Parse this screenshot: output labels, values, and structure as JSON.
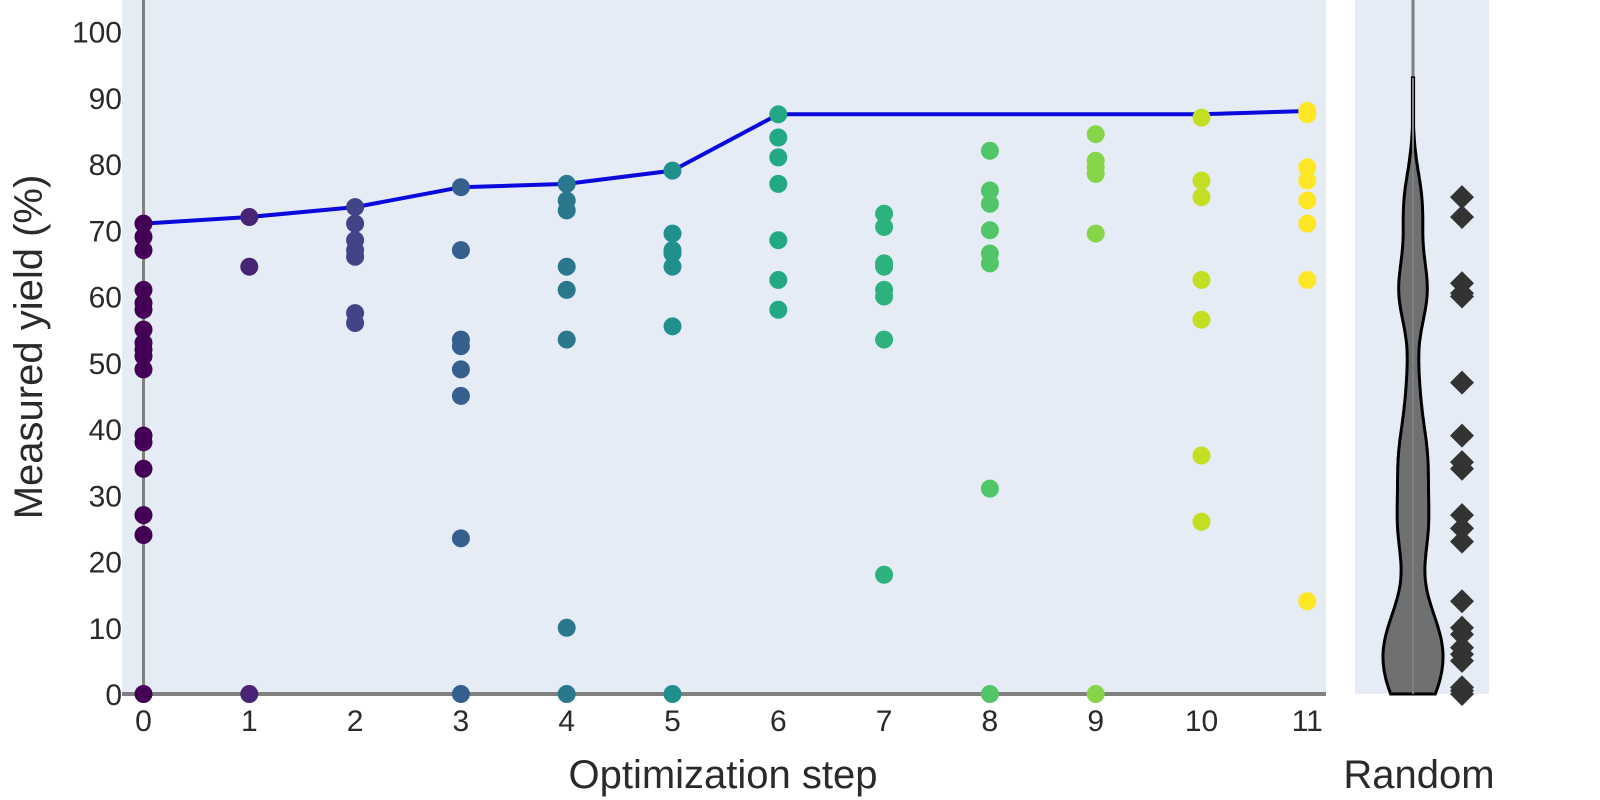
{
  "chart_data": [
    {
      "type": "scatter",
      "xlabel": "Optimization step",
      "ylabel": "Measured yield (%)",
      "xlim": [
        -0.2,
        11.2
      ],
      "ylim": [
        0,
        105
      ],
      "x_ticks": [
        "0",
        "1",
        "2",
        "3",
        "4",
        "5",
        "6",
        "7",
        "8",
        "9",
        "10",
        "11"
      ],
      "y_ticks": [
        "0",
        "10",
        "20",
        "30",
        "40",
        "50",
        "60",
        "70",
        "80",
        "90",
        "100"
      ],
      "grid": false,
      "legend": "none",
      "colormap": "viridis",
      "colors": {
        "plot_bg": "#e5ecf6",
        "best_line": "#0a0adc",
        "axis_line": "#808080",
        "step_colors": [
          "#440154",
          "#482475",
          "#414487",
          "#355f8d",
          "#2a788e",
          "#21908d",
          "#22a884",
          "#42be71",
          "#7ad151",
          "#bddf26",
          "#fde725"
        ]
      },
      "points": [
        {
          "x": 0,
          "values": [
            71,
            69,
            67,
            61,
            59,
            58,
            55,
            53,
            52,
            51,
            49,
            39,
            38,
            34,
            27,
            24,
            0
          ],
          "color": "#440154"
        },
        {
          "x": 1,
          "values": [
            72,
            64.5,
            0
          ],
          "color": "#482475"
        },
        {
          "x": 2,
          "values": [
            73.5,
            71,
            68.5,
            67,
            66,
            57.5,
            56
          ],
          "color": "#414487"
        },
        {
          "x": 3,
          "values": [
            76.5,
            67,
            53.5,
            52.5,
            49,
            45,
            23.5,
            0
          ],
          "color": "#355f8d"
        },
        {
          "x": 4,
          "values": [
            77,
            74.5,
            73,
            64.5,
            61,
            53.5,
            10,
            0
          ],
          "color": "#2a788e"
        },
        {
          "x": 5,
          "values": [
            79,
            69.5,
            67,
            66.5,
            64.5,
            55.5,
            0
          ],
          "color": "#21908d"
        },
        {
          "x": 6,
          "values": [
            87.5,
            84,
            81,
            77,
            68.5,
            62.5,
            58
          ],
          "color": "#22a884"
        },
        {
          "x": 7,
          "values": [
            72.5,
            70.5,
            65,
            64.5,
            61,
            60,
            53.5,
            18
          ],
          "color": "#2db27d"
        },
        {
          "x": 8,
          "values": [
            82,
            76,
            74,
            70,
            66.5,
            65,
            31,
            0
          ],
          "color": "#52c569"
        },
        {
          "x": 9,
          "values": [
            84.5,
            80.5,
            79.5,
            78.5,
            69.5,
            0
          ],
          "color": "#86d549"
        },
        {
          "x": 10,
          "values": [
            87,
            77.5,
            75,
            62.5,
            56.5,
            36,
            26
          ],
          "color": "#c2df23"
        },
        {
          "x": 11,
          "values": [
            88,
            87.5,
            79.5,
            77.5,
            74.5,
            71,
            62.5,
            14
          ],
          "color": "#fde725"
        }
      ],
      "best_so_far": {
        "x": [
          0,
          1,
          2,
          3,
          4,
          5,
          6,
          7,
          8,
          9,
          10,
          11
        ],
        "values": [
          71,
          72,
          73.5,
          76.5,
          77,
          79,
          87.5,
          87.5,
          87.5,
          87.5,
          87.5,
          88
        ]
      }
    },
    {
      "type": "violin",
      "xlabel": "Random",
      "ylim": [
        0,
        105
      ],
      "range": [
        0,
        93
      ],
      "points": [
        75,
        72,
        62,
        60.5,
        60,
        47,
        39,
        35,
        34,
        27,
        25,
        23,
        14,
        10,
        9,
        7,
        6,
        5,
        1,
        0.5,
        0
      ],
      "colors": {
        "violin_fill": "#6e7072",
        "violin_edge": "#000000",
        "marker": "#333333"
      }
    }
  ]
}
